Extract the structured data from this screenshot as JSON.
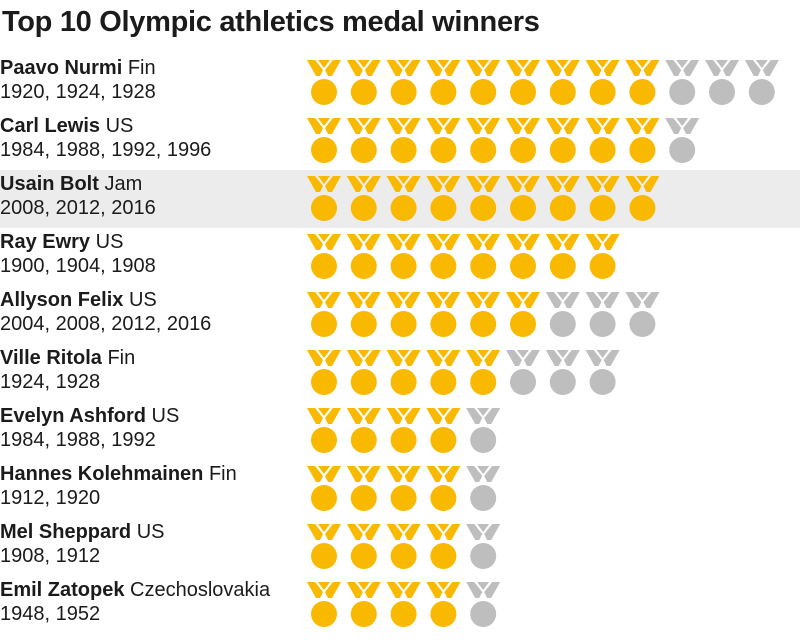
{
  "title": "Top 10 Olympic athletics medal winners",
  "colors": {
    "gold": "#f9b900",
    "silver": "#bebebe",
    "highlight_bg": "#ececec",
    "text": "#1b1b1b"
  },
  "chart_data": {
    "type": "table",
    "title": "Top 10 Olympic athletics medal winners",
    "columns": [
      "athlete",
      "country",
      "years",
      "gold",
      "silver"
    ],
    "rows": [
      {
        "athlete": "Paavo Nurmi",
        "country": "Fin",
        "years": "1920, 1924, 1928",
        "gold": 9,
        "silver": 3,
        "highlight": false
      },
      {
        "athlete": "Carl Lewis",
        "country": "US",
        "years": "1984, 1988, 1992, 1996",
        "gold": 9,
        "silver": 1,
        "highlight": false
      },
      {
        "athlete": "Usain Bolt",
        "country": "Jam",
        "years": "2008, 2012, 2016",
        "gold": 9,
        "silver": 0,
        "highlight": true
      },
      {
        "athlete": "Ray Ewry",
        "country": "US",
        "years": "1900, 1904, 1908",
        "gold": 8,
        "silver": 0,
        "highlight": false
      },
      {
        "athlete": "Allyson Felix",
        "country": "US",
        "years": "2004, 2008, 2012, 2016",
        "gold": 6,
        "silver": 3,
        "highlight": false
      },
      {
        "athlete": "Ville Ritola",
        "country": "Fin",
        "years": "1924, 1928",
        "gold": 5,
        "silver": 3,
        "highlight": false
      },
      {
        "athlete": "Evelyn Ashford",
        "country": "US",
        "years": "1984, 1988, 1992",
        "gold": 4,
        "silver": 1,
        "highlight": false
      },
      {
        "athlete": "Hannes Kolehmainen",
        "country": "Fin",
        "years": "1912, 1920",
        "gold": 4,
        "silver": 1,
        "highlight": false
      },
      {
        "athlete": "Mel Sheppard",
        "country": "US",
        "years": "1908, 1912",
        "gold": 4,
        "silver": 1,
        "highlight": false
      },
      {
        "athlete": "Emil Zatopek",
        "country": "Czechoslovakia",
        "years": "1948, 1952",
        "gold": 4,
        "silver": 1,
        "highlight": false
      }
    ],
    "series": [
      {
        "name": "Gold",
        "values": [
          9,
          9,
          9,
          8,
          6,
          5,
          4,
          4,
          4,
          4
        ]
      },
      {
        "name": "Silver",
        "values": [
          3,
          1,
          0,
          0,
          3,
          3,
          1,
          1,
          1,
          1
        ]
      }
    ]
  }
}
